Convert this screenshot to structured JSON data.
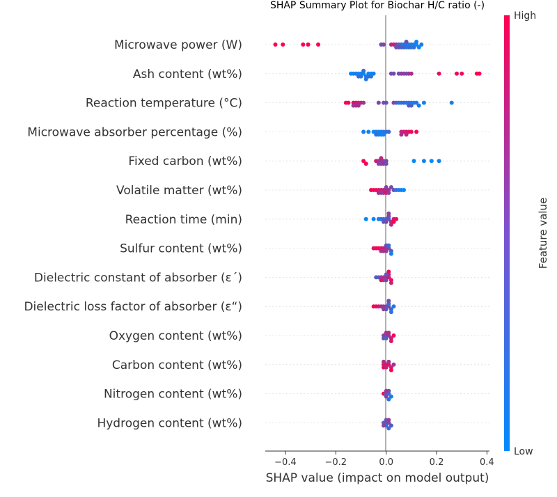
{
  "chart_data": {
    "type": "scatter",
    "subtype": "shap-summary-beeswarm",
    "title": "SHAP Summary Plot for Biochar H/C ratio (-)",
    "xlabel": "SHAP value (impact on model output)",
    "xlim": [
      -0.48,
      0.41
    ],
    "xticks": [
      -0.4,
      -0.2,
      0.0,
      0.2,
      0.4
    ],
    "xtick_labels": [
      "−0.4",
      "−0.2",
      "0.0",
      "0.2",
      "0.4"
    ],
    "colorbar": {
      "label": "Feature value",
      "high_label": "High",
      "low_label": "Low",
      "low_color": "#008bfb",
      "high_color": "#ff0051"
    },
    "features": [
      {
        "name": "Microwave power (W)",
        "points": [
          [
            -0.44,
            1
          ],
          [
            -0.41,
            1
          ],
          [
            -0.33,
            1
          ],
          [
            -0.31,
            1
          ],
          [
            -0.27,
            1
          ],
          [
            -0.02,
            0.4
          ],
          [
            -0.01,
            0.5
          ],
          [
            0.02,
            0.7
          ],
          [
            0.03,
            0.8
          ],
          [
            0.04,
            0.6
          ],
          [
            0.05,
            0.3
          ],
          [
            0.06,
            0.2
          ],
          [
            0.07,
            0.1
          ],
          [
            0.08,
            0.2
          ],
          [
            0.09,
            0.1
          ],
          [
            0.1,
            0.1
          ],
          [
            0.11,
            0.05
          ],
          [
            0.12,
            0.0
          ],
          [
            0.13,
            0.05
          ],
          [
            0.14,
            0.1
          ],
          [
            0.06,
            0.15
          ],
          [
            0.08,
            0.05
          ],
          [
            0.1,
            0.15
          ],
          [
            0.07,
            0.3
          ],
          [
            0.09,
            0.25
          ],
          [
            0.11,
            0.2
          ],
          [
            0.04,
            0.35
          ],
          [
            0.12,
            0.1
          ],
          [
            0.05,
            0.45
          ],
          [
            0.08,
            0.4
          ]
        ]
      },
      {
        "name": "Ash content (wt%)",
        "points": [
          [
            -0.14,
            0.0
          ],
          [
            -0.13,
            0.05
          ],
          [
            -0.12,
            0.1
          ],
          [
            -0.11,
            0.0
          ],
          [
            -0.1,
            0.05
          ],
          [
            -0.09,
            0.0
          ],
          [
            -0.08,
            0.1
          ],
          [
            -0.07,
            0.05
          ],
          [
            -0.06,
            0.0
          ],
          [
            -0.05,
            0.1
          ],
          [
            -0.1,
            0.15
          ],
          [
            -0.09,
            0.2
          ],
          [
            -0.08,
            0.15
          ],
          [
            -0.07,
            0.2
          ],
          [
            -0.11,
            0.25
          ],
          [
            -0.06,
            0.15
          ],
          [
            0.02,
            0.5
          ],
          [
            0.03,
            0.45
          ],
          [
            0.06,
            0.6
          ],
          [
            0.07,
            0.55
          ],
          [
            0.08,
            0.5
          ],
          [
            0.09,
            0.6
          ],
          [
            0.1,
            0.65
          ],
          [
            0.05,
            0.45
          ],
          [
            0.21,
            0.9
          ],
          [
            0.28,
            0.95
          ],
          [
            0.3,
            0.9
          ],
          [
            0.36,
            1
          ],
          [
            0.37,
            1
          ]
        ]
      },
      {
        "name": "Reaction temperature (°C)",
        "points": [
          [
            -0.16,
            1
          ],
          [
            -0.15,
            0.95
          ],
          [
            -0.13,
            0.9
          ],
          [
            -0.12,
            0.85
          ],
          [
            -0.11,
            0.8
          ],
          [
            -0.1,
            0.75
          ],
          [
            -0.12,
            0.7
          ],
          [
            -0.11,
            0.65
          ],
          [
            -0.09,
            0.6
          ],
          [
            -0.13,
            0.6
          ],
          [
            -0.03,
            0.5
          ],
          [
            -0.01,
            0.45
          ],
          [
            0.0,
            0.4
          ],
          [
            0.03,
            0.55
          ],
          [
            0.04,
            0.3
          ],
          [
            0.05,
            0.2
          ],
          [
            0.06,
            0.15
          ],
          [
            0.07,
            0.25
          ],
          [
            0.08,
            0.1
          ],
          [
            0.09,
            0.2
          ],
          [
            0.1,
            0.1
          ],
          [
            0.11,
            0.05
          ],
          [
            0.12,
            0.15
          ],
          [
            0.13,
            0.1
          ],
          [
            0.15,
            0.05
          ],
          [
            0.26,
            0.1
          ],
          [
            0.09,
            0.35
          ],
          [
            0.1,
            0.3
          ]
        ]
      },
      {
        "name": "Microwave absorber percentage (%)",
        "points": [
          [
            -0.09,
            0.1
          ],
          [
            -0.07,
            0.05
          ],
          [
            -0.05,
            0.0
          ],
          [
            -0.04,
            0.1
          ],
          [
            -0.03,
            0.05
          ],
          [
            -0.02,
            0.1
          ],
          [
            -0.01,
            0.15
          ],
          [
            0.0,
            0.2
          ],
          [
            -0.02,
            0.0
          ],
          [
            -0.03,
            0.15
          ],
          [
            -0.01,
            0.05
          ],
          [
            -0.04,
            0.2
          ],
          [
            0.01,
            0.25
          ],
          [
            0.06,
            0.75
          ],
          [
            0.07,
            0.8
          ],
          [
            0.08,
            0.85
          ],
          [
            0.09,
            0.9
          ],
          [
            0.1,
            0.95
          ],
          [
            0.12,
            1
          ],
          [
            0.06,
            0.65
          ],
          [
            0.08,
            0.7
          ]
        ]
      },
      {
        "name": "Fixed carbon (wt%)",
        "points": [
          [
            -0.09,
            1
          ],
          [
            -0.08,
            0.95
          ],
          [
            -0.04,
            0.8
          ],
          [
            -0.03,
            0.7
          ],
          [
            -0.02,
            0.6
          ],
          [
            -0.01,
            0.55
          ],
          [
            0.0,
            0.5
          ],
          [
            -0.02,
            0.45
          ],
          [
            -0.01,
            0.65
          ],
          [
            -0.03,
            0.5
          ],
          [
            0.0,
            0.4
          ],
          [
            -0.02,
            0.75
          ],
          [
            0.11,
            0.0
          ],
          [
            0.15,
            0.05
          ],
          [
            0.18,
            0.0
          ],
          [
            0.21,
            0.05
          ]
        ]
      },
      {
        "name": "Volatile matter (wt%)",
        "points": [
          [
            -0.06,
            0.95
          ],
          [
            -0.05,
            1
          ],
          [
            -0.04,
            0.9
          ],
          [
            -0.03,
            0.85
          ],
          [
            -0.02,
            0.8
          ],
          [
            -0.01,
            0.75
          ],
          [
            0.0,
            0.7
          ],
          [
            0.01,
            0.65
          ],
          [
            -0.02,
            0.55
          ],
          [
            -0.01,
            0.6
          ],
          [
            0.0,
            0.9
          ],
          [
            0.01,
            0.5
          ],
          [
            0.02,
            0.45
          ],
          [
            0.03,
            0.4
          ],
          [
            0.04,
            0.2
          ],
          [
            0.05,
            0.1
          ],
          [
            0.06,
            0.05
          ],
          [
            0.07,
            0.0
          ],
          [
            -0.03,
            0.65
          ],
          [
            0.0,
            0.55
          ]
        ]
      },
      {
        "name": "Reaction time (min)",
        "points": [
          [
            -0.08,
            0.0
          ],
          [
            -0.05,
            0.05
          ],
          [
            -0.03,
            0.1
          ],
          [
            -0.02,
            0.15
          ],
          [
            -0.01,
            0.2
          ],
          [
            0.0,
            0.25
          ],
          [
            0.01,
            0.35
          ],
          [
            0.02,
            0.6
          ],
          [
            0.03,
            0.8
          ],
          [
            0.04,
            0.9
          ],
          [
            0.01,
            0.45
          ],
          [
            0.0,
            0.5
          ],
          [
            0.02,
            0.7
          ],
          [
            -0.01,
            0.4
          ],
          [
            0.03,
            1
          ],
          [
            0.01,
            0.55
          ]
        ]
      },
      {
        "name": "Sulfur content (wt%)",
        "points": [
          [
            -0.05,
            0.9
          ],
          [
            -0.04,
            0.95
          ],
          [
            -0.03,
            1
          ],
          [
            -0.02,
            0.85
          ],
          [
            -0.01,
            0.8
          ],
          [
            0.0,
            0.7
          ],
          [
            0.01,
            0.5
          ],
          [
            0.02,
            0.3
          ],
          [
            -0.02,
            0.6
          ],
          [
            0.0,
            0.55
          ],
          [
            0.01,
            0.2
          ],
          [
            0.02,
            0.1
          ],
          [
            -0.01,
            0.65
          ],
          [
            0.0,
            0.4
          ]
        ]
      },
      {
        "name": "Dielectric constant of absorber (ε´)",
        "points": [
          [
            -0.04,
            0.3
          ],
          [
            -0.03,
            0.4
          ],
          [
            -0.02,
            0.5
          ],
          [
            -0.01,
            0.6
          ],
          [
            0.0,
            0.7
          ],
          [
            0.01,
            0.8
          ],
          [
            0.02,
            0.9
          ],
          [
            0.0,
            0.55
          ],
          [
            0.01,
            0.65
          ],
          [
            -0.01,
            0.45
          ],
          [
            0.02,
            0.75
          ],
          [
            0.0,
            0.35
          ],
          [
            0.01,
            0.95
          ],
          [
            -0.02,
            0.85
          ]
        ]
      },
      {
        "name": "Dielectric loss factor of absorber (ε“)",
        "points": [
          [
            -0.05,
            1
          ],
          [
            -0.04,
            0.9
          ],
          [
            -0.03,
            0.8
          ],
          [
            -0.02,
            0.7
          ],
          [
            -0.01,
            0.6
          ],
          [
            0.0,
            0.5
          ],
          [
            0.01,
            0.4
          ],
          [
            0.02,
            0.3
          ],
          [
            0.03,
            0.1
          ],
          [
            0.01,
            0.2
          ],
          [
            0.0,
            0.35
          ],
          [
            -0.01,
            0.55
          ],
          [
            0.02,
            0.15
          ],
          [
            0.01,
            0.45
          ]
        ]
      },
      {
        "name": "Oxygen content (wt%)",
        "points": [
          [
            -0.01,
            0.5
          ],
          [
            0.0,
            0.55
          ],
          [
            0.01,
            0.6
          ],
          [
            0.02,
            0.8
          ],
          [
            0.03,
            0.95
          ],
          [
            -0.01,
            0.4
          ],
          [
            0.0,
            0.3
          ],
          [
            0.01,
            0.7
          ],
          [
            0.02,
            0.85
          ],
          [
            0.0,
            0.65
          ]
        ]
      },
      {
        "name": "Carbon content (wt%)",
        "points": [
          [
            -0.01,
            0.8
          ],
          [
            0.0,
            0.85
          ],
          [
            0.01,
            0.9
          ],
          [
            0.02,
            0.75
          ],
          [
            0.03,
            0.6
          ],
          [
            -0.01,
            0.95
          ],
          [
            0.0,
            0.7
          ],
          [
            0.01,
            0.65
          ],
          [
            0.02,
            1
          ],
          [
            -0.01,
            0.7
          ]
        ]
      },
      {
        "name": "Nitrogen content (wt%)",
        "points": [
          [
            -0.01,
            0.9
          ],
          [
            0.0,
            0.3
          ],
          [
            0.01,
            0.2
          ],
          [
            0.02,
            0.1
          ],
          [
            0.0,
            0.5
          ],
          [
            0.01,
            0.4
          ],
          [
            0.0,
            0.6
          ],
          [
            0.01,
            0.15
          ]
        ]
      },
      {
        "name": "Hydrogen content (wt%)",
        "points": [
          [
            -0.01,
            0.3
          ],
          [
            0.0,
            0.4
          ],
          [
            0.01,
            0.5
          ],
          [
            0.02,
            0.35
          ],
          [
            0.0,
            0.2
          ],
          [
            0.01,
            0.6
          ],
          [
            0.0,
            0.45
          ],
          [
            -0.01,
            0.55
          ],
          [
            0.01,
            0.25
          ]
        ]
      }
    ]
  }
}
